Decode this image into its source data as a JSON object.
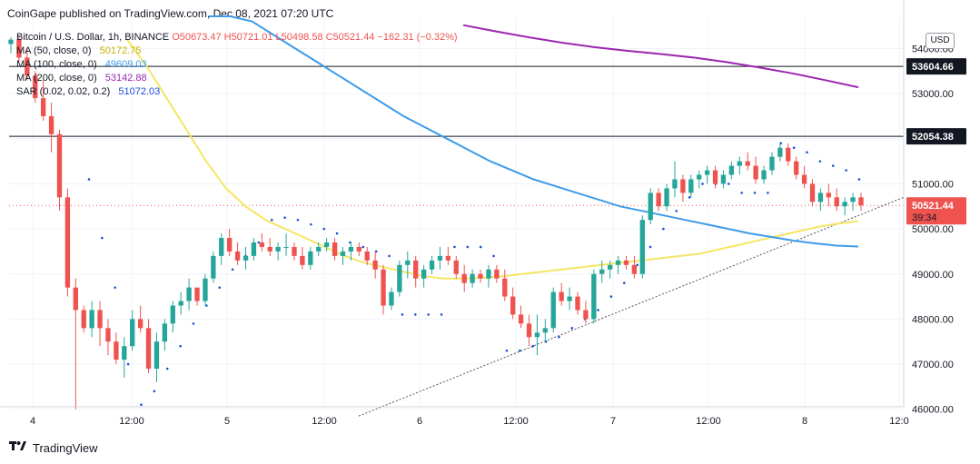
{
  "header": {
    "publisher": "CoinGape published on TradingView.com, Dec 08, 2021 07:20 UTC",
    "currency_badge": "USD"
  },
  "legend": {
    "symbol": "Bitcoin / U.S. Dollar, 1h, BINANCE",
    "ohlc": "O50673.47  H50721.01  L50498.58  C50521.44  −162.31 (−0.32%)",
    "ma50_label": "MA (50, close, 0)",
    "ma50_value": "50172.75",
    "ma100_label": "MA (100, close, 0)",
    "ma100_value": "49609.03",
    "ma200_label": "MA (200, close, 0)",
    "ma200_value": "53142.88",
    "sar_label": "SAR (0.02, 0.02, 0.2)",
    "sar_value": "51072.03"
  },
  "colors": {
    "up": "#26a69a",
    "down": "#ef5350",
    "ma50": "#f5e663",
    "ma100": "#3d9be9",
    "ma200": "#9c27b0",
    "sar": "#1e4fd8",
    "current_price_box": "#ef5350"
  },
  "price_labels": {
    "resistance_upper": "53604.66",
    "resistance_lower": "52054.38",
    "current": "50521.44",
    "countdown": "39:34"
  },
  "footer": {
    "logo_icon": "tradingview-logo-icon",
    "brand": "TradingView"
  },
  "chart_data": {
    "type": "candlestick",
    "title": "Bitcoin / U.S. Dollar, 1h, BINANCE",
    "y_ticks": [
      54000,
      53000,
      52000,
      51000,
      50000,
      49000,
      48000,
      47000,
      46000
    ],
    "y_tick_labels": [
      "54000.00",
      "53000.00",
      "52000.00",
      "51000.00",
      "50000.00",
      "49000.00",
      "48000.00",
      "47000.00",
      "46000.00"
    ],
    "x_ticks": [
      "4",
      "12:00",
      "5",
      "12:00",
      "6",
      "12:00",
      "7",
      "12:00",
      "8",
      "12:0"
    ],
    "horizontal_levels": [
      53604.66,
      52054.38
    ],
    "current_price": 50521.44,
    "trendline": {
      "from_price": 45850,
      "to_price": 50700
    },
    "candles": [
      [
        54100,
        54250,
        53900,
        54200
      ],
      [
        54200,
        54300,
        53700,
        53800
      ],
      [
        53800,
        54000,
        53300,
        53400
      ],
      [
        53400,
        53500,
        52800,
        52900
      ],
      [
        52900,
        53300,
        52400,
        52500
      ],
      [
        52500,
        52800,
        51700,
        52100
      ],
      [
        52100,
        52200,
        50400,
        50700
      ],
      [
        50700,
        50900,
        48500,
        48700
      ],
      [
        48700,
        48900,
        46000,
        48200
      ],
      [
        48200,
        48300,
        47700,
        47800
      ],
      [
        47800,
        48400,
        47600,
        48200
      ],
      [
        48200,
        48400,
        47400,
        47800
      ],
      [
        47800,
        48000,
        47200,
        47500
      ],
      [
        47500,
        47700,
        47000,
        47100
      ],
      [
        47100,
        47600,
        46700,
        47400
      ],
      [
        47400,
        48200,
        47300,
        48000
      ],
      [
        48000,
        48300,
        47700,
        47800
      ],
      [
        47800,
        48000,
        46800,
        46900
      ],
      [
        46900,
        47700,
        46600,
        47500
      ],
      [
        47500,
        48000,
        47300,
        47900
      ],
      [
        47900,
        48400,
        47700,
        48300
      ],
      [
        48300,
        48600,
        48100,
        48400
      ],
      [
        48400,
        48900,
        48200,
        48700
      ],
      [
        48700,
        48700,
        48300,
        48400
      ],
      [
        48400,
        49000,
        48300,
        48900
      ],
      [
        48900,
        49500,
        48800,
        49400
      ],
      [
        49400,
        49900,
        49200,
        49800
      ],
      [
        49800,
        50000,
        49400,
        49500
      ],
      [
        49500,
        49700,
        49200,
        49300
      ],
      [
        49300,
        49600,
        49100,
        49400
      ],
      [
        49400,
        49800,
        49300,
        49700
      ],
      [
        49700,
        49900,
        49500,
        49600
      ],
      [
        49600,
        49800,
        49400,
        49500
      ],
      [
        49500,
        49700,
        49300,
        49600
      ],
      [
        49600,
        49900,
        49400,
        49600
      ],
      [
        49600,
        49700,
        49300,
        49400
      ],
      [
        49400,
        49600,
        49100,
        49200
      ],
      [
        49200,
        49600,
        49100,
        49500
      ],
      [
        49500,
        49700,
        49400,
        49600
      ],
      [
        49600,
        49800,
        49500,
        49700
      ],
      [
        49700,
        49800,
        49300,
        49400
      ],
      [
        49400,
        49600,
        49200,
        49500
      ],
      [
        49500,
        49700,
        49300,
        49600
      ],
      [
        49600,
        49700,
        49400,
        49500
      ],
      [
        49500,
        49600,
        49200,
        49300
      ],
      [
        49300,
        49500,
        48900,
        49100
      ],
      [
        49100,
        49200,
        48100,
        48300
      ],
      [
        48300,
        48700,
        48200,
        48600
      ],
      [
        48600,
        49300,
        48500,
        49200
      ],
      [
        49200,
        49500,
        48900,
        49300
      ],
      [
        49300,
        49400,
        48700,
        48900
      ],
      [
        48900,
        49200,
        48700,
        49100
      ],
      [
        49100,
        49400,
        49000,
        49300
      ],
      [
        49300,
        49600,
        49100,
        49400
      ],
      [
        49400,
        49600,
        49200,
        49300
      ],
      [
        49300,
        49400,
        48900,
        49000
      ],
      [
        49000,
        49200,
        48600,
        48800
      ],
      [
        48800,
        49100,
        48700,
        49000
      ],
      [
        49000,
        49100,
        48800,
        48900
      ],
      [
        48900,
        49200,
        48700,
        49100
      ],
      [
        49100,
        49200,
        48800,
        48900
      ],
      [
        48900,
        49100,
        48400,
        48500
      ],
      [
        48500,
        48700,
        48000,
        48100
      ],
      [
        48100,
        48300,
        47800,
        47900
      ],
      [
        47900,
        48100,
        47400,
        47600
      ],
      [
        47600,
        48100,
        47200,
        47700
      ],
      [
        47700,
        48000,
        47500,
        47800
      ],
      [
        47800,
        48700,
        47700,
        48600
      ],
      [
        48600,
        48800,
        48300,
        48400
      ],
      [
        48400,
        48700,
        48200,
        48500
      ],
      [
        48500,
        48600,
        48100,
        48200
      ],
      [
        48200,
        48400,
        47900,
        48000
      ],
      [
        48000,
        49100,
        47900,
        49000
      ],
      [
        49000,
        49300,
        48800,
        49100
      ],
      [
        49100,
        49300,
        48900,
        49200
      ],
      [
        49200,
        49400,
        49000,
        49300
      ],
      [
        49300,
        49400,
        49100,
        49200
      ],
      [
        49200,
        49400,
        48900,
        49000
      ],
      [
        49000,
        50300,
        48900,
        50200
      ],
      [
        50200,
        50900,
        50100,
        50800
      ],
      [
        50800,
        50900,
        50400,
        50500
      ],
      [
        50500,
        51000,
        50400,
        50900
      ],
      [
        50900,
        51500,
        50700,
        51100
      ],
      [
        51100,
        51200,
        50600,
        50800
      ],
      [
        50800,
        51200,
        50700,
        51100
      ],
      [
        51100,
        51300,
        50900,
        51200
      ],
      [
        51200,
        51400,
        51000,
        51300
      ],
      [
        51300,
        51400,
        50900,
        51000
      ],
      [
        51000,
        51300,
        50900,
        51200
      ],
      [
        51200,
        51500,
        51100,
        51400
      ],
      [
        51400,
        51600,
        51200,
        51500
      ],
      [
        51500,
        51700,
        51300,
        51400
      ],
      [
        51400,
        51600,
        51000,
        51100
      ],
      [
        51100,
        51400,
        51000,
        51300
      ],
      [
        51300,
        51700,
        51200,
        51600
      ],
      [
        51600,
        51900,
        51500,
        51800
      ],
      [
        51800,
        51900,
        51400,
        51500
      ],
      [
        51500,
        51600,
        51100,
        51200
      ],
      [
        51200,
        51400,
        50900,
        51000
      ],
      [
        51000,
        51100,
        50500,
        50600
      ],
      [
        50600,
        50900,
        50400,
        50800
      ],
      [
        50800,
        51000,
        50500,
        50700
      ],
      [
        50700,
        50900,
        50400,
        50500
      ],
      [
        50500,
        50700,
        50300,
        50600
      ],
      [
        50600,
        50800,
        50400,
        50700
      ],
      [
        50700,
        50800,
        50400,
        50521
      ]
    ],
    "series": [
      {
        "name": "MA (50, close, 0)",
        "values": [
          54200,
          53600,
          52900,
          52200,
          51500,
          50900,
          50500,
          50200,
          50000,
          49800,
          49600,
          49400,
          49250,
          49150,
          49050,
          48950,
          48900,
          48900,
          48920,
          48950,
          49000,
          49050,
          49100,
          49150,
          49200,
          49250,
          49300,
          49350,
          49400,
          49450,
          49550,
          49650,
          49750,
          49850,
          49950,
          50050,
          50120,
          50172
        ]
      },
      {
        "name": "MA (100, close, 0)",
        "values": [
          55200,
          54900,
          54600,
          54300,
          54000,
          53700,
          53400,
          53100,
          52800,
          52500,
          52250,
          52000,
          51750,
          51500,
          51300,
          51100,
          50950,
          50800,
          50650,
          50500,
          50400,
          50300,
          50200,
          50100,
          50000,
          49900,
          49820,
          49740,
          49680,
          49630,
          49609
        ]
      },
      {
        "name": "MA (200, close, 0)",
        "values": [
          54520,
          54380,
          54250,
          54130,
          54030,
          53950,
          53880,
          53800,
          53700,
          53580,
          53450,
          53300,
          53143
        ]
      },
      {
        "name": "SAR (0.02, 0.02, 0.2)",
        "values": [
          51100,
          49800,
          48700,
          47000,
          46100,
          46400,
          46900,
          47400,
          47900,
          48300,
          48700,
          49100,
          49400,
          49700,
          50200,
          50250,
          50200,
          50100,
          50000,
          49900,
          49700,
          49600,
          49500,
          49400,
          48100,
          48100,
          48100,
          48100,
          49600,
          49600,
          49600,
          49400,
          47300,
          47300,
          47400,
          47500,
          47600,
          47800,
          48000,
          48200,
          48500,
          48800,
          49200,
          49600,
          50000,
          50400,
          50700,
          51000,
          51000,
          51000,
          50800,
          50800,
          50800,
          51900,
          51800,
          51700,
          51500,
          51400,
          51300,
          51100
        ]
      }
    ]
  }
}
